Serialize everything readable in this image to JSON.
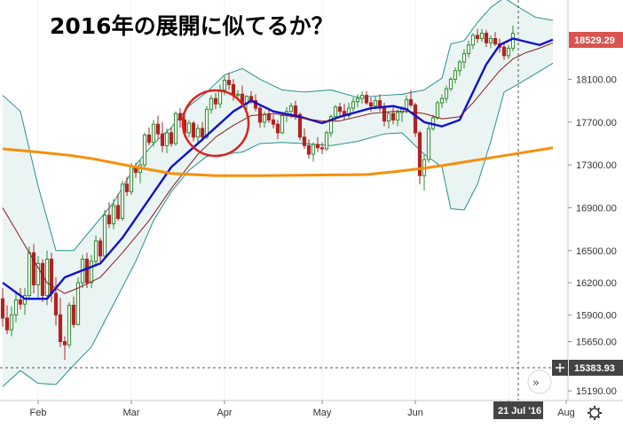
{
  "heading": "2016年の展開に似てるか？",
  "chart_data": {
    "type": "candlestick",
    "title": "2016年の展開に似てるか？",
    "ylim": [
      15100,
      18840
    ],
    "y_ticks": [
      "18100.00",
      "17700.00",
      "17300.00",
      "16900.00",
      "16500.00",
      "16200.00",
      "15900.00",
      "15650.00",
      "15190.00"
    ],
    "x_ticks": [
      "Feb",
      "Mar",
      "Apr",
      "May",
      "Jun",
      "Jul",
      "Aug"
    ],
    "last_price": "18529.29",
    "crosshair_price": "15383.93",
    "crosshair_date": "21 Jul '16",
    "colors": {
      "up": "#2e8b2e",
      "down": "#b22222",
      "bollinger_band": "#2a8f8f",
      "ma_short": "#1010d0",
      "ma_mid": "#8b1a1a",
      "ma_long": "#f5900c",
      "highlight_circle": "#e02020",
      "price_badge": "#d9534f",
      "crosshair_badge": "#444444"
    },
    "candles": [
      [
        16050,
        16150,
        15790,
        15870
      ],
      [
        15870,
        15990,
        15720,
        15760
      ],
      [
        15760,
        15980,
        15700,
        15900
      ],
      [
        15900,
        16100,
        15830,
        16040
      ],
      [
        16040,
        16150,
        15950,
        16000
      ],
      [
        16000,
        16150,
        15900,
        16080
      ],
      [
        16080,
        16540,
        16050,
        16480
      ],
      [
        16480,
        16560,
        16100,
        16180
      ],
      [
        16180,
        16450,
        16060,
        16380
      ],
      [
        16380,
        16420,
        16020,
        16080
      ],
      [
        16080,
        16500,
        15990,
        16420
      ],
      [
        16420,
        16480,
        16020,
        16100
      ],
      [
        16100,
        16250,
        15800,
        15900
      ],
      [
        15900,
        16060,
        15600,
        15650
      ],
      [
        15650,
        15700,
        15480,
        15620
      ],
      [
        15620,
        16020,
        15590,
        15990
      ],
      [
        15990,
        16070,
        15780,
        15810
      ],
      [
        15810,
        16250,
        15800,
        16200
      ],
      [
        16200,
        16460,
        16150,
        16420
      ],
      [
        16420,
        16480,
        16150,
        16200
      ],
      [
        16200,
        16460,
        16150,
        16400
      ],
      [
        16400,
        16640,
        16350,
        16590
      ],
      [
        16590,
        16620,
        16400,
        16450
      ],
      [
        16450,
        16880,
        16420,
        16830
      ],
      [
        16830,
        16950,
        16710,
        16750
      ],
      [
        16750,
        16980,
        16700,
        16920
      ],
      [
        16920,
        17030,
        16780,
        16800
      ],
      [
        16800,
        17150,
        16780,
        17120
      ],
      [
        17120,
        17190,
        17010,
        17050
      ],
      [
        17050,
        17320,
        17020,
        17280
      ],
      [
        17280,
        17320,
        17180,
        17230
      ],
      [
        17230,
        17350,
        17130,
        17300
      ],
      [
        17300,
        17600,
        17280,
        17580
      ],
      [
        17580,
        17650,
        17480,
        17510
      ],
      [
        17510,
        17720,
        17470,
        17680
      ],
      [
        17680,
        17760,
        17540,
        17590
      ],
      [
        17590,
        17700,
        17420,
        17480
      ],
      [
        17480,
        17640,
        17410,
        17600
      ],
      [
        17600,
        17650,
        17470,
        17500
      ],
      [
        17500,
        17800,
        17480,
        17780
      ],
      [
        17780,
        17830,
        17650,
        17720
      ],
      [
        17720,
        17760,
        17560,
        17600
      ],
      [
        17600,
        17720,
        17560,
        17690
      ],
      [
        17690,
        17710,
        17520,
        17560
      ],
      [
        17560,
        17680,
        17490,
        17640
      ],
      [
        17640,
        17700,
        17520,
        17560
      ],
      [
        17560,
        17850,
        17540,
        17820
      ],
      [
        17820,
        17950,
        17780,
        17920
      ],
      [
        17920,
        17970,
        17820,
        17870
      ],
      [
        17870,
        18050,
        17830,
        18000
      ],
      [
        18000,
        18130,
        17950,
        18090
      ],
      [
        18090,
        18160,
        18000,
        18050
      ],
      [
        18050,
        18100,
        17900,
        17950
      ],
      [
        17950,
        18000,
        17900,
        17960
      ],
      [
        17960,
        18040,
        17850,
        17870
      ],
      [
        17870,
        17950,
        17750,
        17940
      ],
      [
        17940,
        17990,
        17870,
        17900
      ],
      [
        17900,
        17960,
        17800,
        17830
      ],
      [
        17830,
        17860,
        17650,
        17700
      ],
      [
        17700,
        17800,
        17650,
        17770
      ],
      [
        17770,
        17810,
        17690,
        17720
      ],
      [
        17720,
        17770,
        17640,
        17680
      ],
      [
        17680,
        17720,
        17540,
        17600
      ],
      [
        17600,
        17790,
        17590,
        17760
      ],
      [
        17760,
        17840,
        17700,
        17800
      ],
      [
        17800,
        17880,
        17740,
        17850
      ],
      [
        17850,
        17900,
        17720,
        17770
      ],
      [
        17770,
        17790,
        17530,
        17560
      ],
      [
        17560,
        17640,
        17450,
        17480
      ],
      [
        17480,
        17540,
        17360,
        17400
      ],
      [
        17400,
        17510,
        17330,
        17490
      ],
      [
        17490,
        17560,
        17420,
        17460
      ],
      [
        17460,
        17510,
        17400,
        17450
      ],
      [
        17450,
        17620,
        17430,
        17600
      ],
      [
        17600,
        17770,
        17560,
        17750
      ],
      [
        17750,
        17860,
        17710,
        17840
      ],
      [
        17840,
        17880,
        17740,
        17800
      ],
      [
        17800,
        17870,
        17720,
        17760
      ],
      [
        17760,
        17880,
        17730,
        17830
      ],
      [
        17830,
        17930,
        17800,
        17890
      ],
      [
        17890,
        17960,
        17840,
        17920
      ],
      [
        17920,
        17990,
        17870,
        17950
      ],
      [
        17950,
        17990,
        17860,
        17880
      ],
      [
        17880,
        17930,
        17800,
        17850
      ],
      [
        17850,
        17940,
        17820,
        17900
      ],
      [
        17900,
        17960,
        17800,
        17830
      ],
      [
        17830,
        17880,
        17660,
        17710
      ],
      [
        17710,
        17800,
        17640,
        17780
      ],
      [
        17780,
        17850,
        17680,
        17720
      ],
      [
        17720,
        17820,
        17660,
        17790
      ],
      [
        17790,
        17850,
        17700,
        17820
      ],
      [
        17820,
        17950,
        17780,
        17910
      ],
      [
        17910,
        18000,
        17840,
        17860
      ],
      [
        17860,
        17880,
        17560,
        17600
      ],
      [
        17600,
        17620,
        17120,
        17200
      ],
      [
        17200,
        17400,
        17060,
        17350
      ],
      [
        17350,
        17680,
        17320,
        17640
      ],
      [
        17640,
        17770,
        17620,
        17740
      ],
      [
        17740,
        17900,
        17720,
        17880
      ],
      [
        17880,
        17960,
        17830,
        17920
      ],
      [
        17920,
        18040,
        17880,
        18010
      ],
      [
        18010,
        18120,
        17990,
        18100
      ],
      [
        18100,
        18210,
        18060,
        18180
      ],
      [
        18180,
        18280,
        18130,
        18260
      ],
      [
        18260,
        18380,
        18200,
        18340
      ],
      [
        18340,
        18460,
        18300,
        18420
      ],
      [
        18420,
        18530,
        18380,
        18510
      ],
      [
        18510,
        18570,
        18440,
        18480
      ],
      [
        18480,
        18570,
        18450,
        18530
      ],
      [
        18530,
        18560,
        18400,
        18440
      ],
      [
        18440,
        18510,
        18390,
        18480
      ],
      [
        18480,
        18540,
        18410,
        18430
      ],
      [
        18430,
        18480,
        18350,
        18400
      ],
      [
        18400,
        18450,
        18280,
        18320
      ],
      [
        18320,
        18420,
        18290,
        18390
      ],
      [
        18390,
        18600,
        18360,
        18529
      ]
    ],
    "series": [
      {
        "name": "",
        "style": "ma_short",
        "values": [
          [
            0,
            16200
          ],
          [
            5,
            16050
          ],
          [
            10,
            16050
          ],
          [
            14,
            16250
          ],
          [
            17,
            16300
          ],
          [
            22,
            16380
          ],
          [
            27,
            16620
          ],
          [
            33,
            16980
          ],
          [
            38,
            17280
          ],
          [
            44,
            17500
          ],
          [
            48,
            17650
          ],
          [
            52,
            17800
          ],
          [
            56,
            17900
          ],
          [
            61,
            17800
          ],
          [
            67,
            17750
          ],
          [
            72,
            17690
          ],
          [
            76,
            17750
          ],
          [
            83,
            17830
          ],
          [
            88,
            17850
          ],
          [
            91,
            17820
          ],
          [
            95,
            17700
          ],
          [
            99,
            17660
          ],
          [
            103,
            17720
          ],
          [
            106,
            17980
          ],
          [
            109,
            18240
          ],
          [
            112,
            18420
          ],
          [
            115,
            18480
          ],
          [
            118,
            18450
          ],
          [
            121,
            18420
          ],
          [
            124,
            18470
          ]
        ]
      },
      {
        "name": "",
        "style": "ma_mid",
        "values": [
          [
            0,
            16900
          ],
          [
            5,
            16550
          ],
          [
            10,
            16200
          ],
          [
            14,
            16100
          ],
          [
            17,
            16150
          ],
          [
            22,
            16250
          ],
          [
            27,
            16480
          ],
          [
            33,
            16780
          ],
          [
            38,
            17080
          ],
          [
            44,
            17400
          ],
          [
            48,
            17560
          ],
          [
            52,
            17670
          ],
          [
            56,
            17760
          ],
          [
            61,
            17780
          ],
          [
            67,
            17740
          ],
          [
            72,
            17710
          ],
          [
            76,
            17710
          ],
          [
            83,
            17780
          ],
          [
            88,
            17800
          ],
          [
            91,
            17800
          ],
          [
            95,
            17780
          ],
          [
            99,
            17730
          ],
          [
            103,
            17750
          ],
          [
            106,
            17880
          ],
          [
            109,
            18030
          ],
          [
            112,
            18180
          ],
          [
            115,
            18290
          ],
          [
            118,
            18350
          ],
          [
            121,
            18390
          ],
          [
            124,
            18440
          ]
        ]
      },
      {
        "name": "",
        "style": "ma_long",
        "values": [
          [
            0,
            17450
          ],
          [
            8,
            17420
          ],
          [
            15,
            17390
          ],
          [
            20,
            17360
          ],
          [
            25,
            17320
          ],
          [
            30,
            17280
          ],
          [
            38,
            17220
          ],
          [
            48,
            17200
          ],
          [
            58,
            17200
          ],
          [
            70,
            17205
          ],
          [
            82,
            17210
          ],
          [
            89,
            17240
          ],
          [
            95,
            17270
          ],
          [
            100,
            17300
          ],
          [
            106,
            17340
          ],
          [
            112,
            17380
          ],
          [
            118,
            17420
          ],
          [
            124,
            17460
          ]
        ]
      },
      {
        "name": "",
        "style": "bollinger_band",
        "values": [
          [
            0,
            17950
          ],
          [
            4,
            17800
          ],
          [
            8,
            17100
          ],
          [
            12,
            16500
          ],
          [
            16,
            16500
          ],
          [
            20,
            16700
          ],
          [
            25,
            16950
          ],
          [
            30,
            17300
          ],
          [
            34,
            17500
          ],
          [
            38,
            17650
          ],
          [
            42,
            17850
          ],
          [
            46,
            17980
          ],
          [
            50,
            18140
          ],
          [
            54,
            18200
          ],
          [
            58,
            18100
          ],
          [
            63,
            18000
          ],
          [
            68,
            17980
          ],
          [
            74,
            18000
          ],
          [
            80,
            17930
          ],
          [
            86,
            17950
          ],
          [
            90,
            17960
          ],
          [
            95,
            18000
          ],
          [
            99,
            18110
          ],
          [
            101,
            18430
          ],
          [
            104,
            18460
          ],
          [
            107,
            18630
          ],
          [
            110,
            18770
          ],
          [
            113,
            18860
          ],
          [
            116,
            18780
          ],
          [
            120,
            18680
          ],
          [
            124,
            18650
          ]
        ]
      },
      {
        "name": "",
        "style": "bollinger_band",
        "values": [
          [
            0,
            15230
          ],
          [
            4,
            15380
          ],
          [
            8,
            15260
          ],
          [
            12,
            15250
          ],
          [
            16,
            15430
          ],
          [
            20,
            15600
          ],
          [
            25,
            16000
          ],
          [
            30,
            16400
          ],
          [
            34,
            16780
          ],
          [
            38,
            17050
          ],
          [
            42,
            17250
          ],
          [
            46,
            17380
          ],
          [
            50,
            17400
          ],
          [
            54,
            17420
          ],
          [
            58,
            17500
          ],
          [
            63,
            17510
          ],
          [
            68,
            17500
          ],
          [
            74,
            17480
          ],
          [
            80,
            17520
          ],
          [
            86,
            17590
          ],
          [
            90,
            17600
          ],
          [
            95,
            17400
          ],
          [
            99,
            17280
          ],
          [
            101,
            16890
          ],
          [
            104,
            16880
          ],
          [
            107,
            17120
          ],
          [
            110,
            17520
          ],
          [
            113,
            17980
          ],
          [
            116,
            18050
          ],
          [
            120,
            18150
          ],
          [
            124,
            18250
          ]
        ]
      }
    ],
    "highlight_circle": {
      "center_index": 48,
      "center_value": 17690
    },
    "grid": false,
    "legend": "none"
  }
}
